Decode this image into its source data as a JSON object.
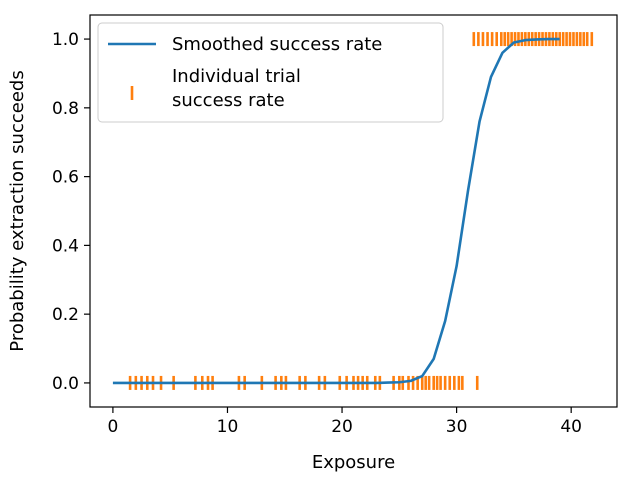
{
  "chart_data": {
    "type": "line",
    "xlabel": "Exposure",
    "ylabel": "Probability extraction succeeds",
    "xlim": [
      -2,
      44
    ],
    "ylim": [
      -0.07,
      1.07
    ],
    "x_ticks": [
      0,
      10,
      20,
      30,
      40
    ],
    "y_ticks": [
      0.0,
      0.2,
      0.4,
      0.6,
      0.8,
      1.0
    ],
    "x_tick_labels": [
      "0",
      "10",
      "20",
      "30",
      "40"
    ],
    "y_tick_labels": [
      "0.0",
      "0.2",
      "0.4",
      "0.6",
      "0.8",
      "1.0"
    ],
    "grid": false,
    "legend_position": "top-left",
    "series": [
      {
        "name": "Smoothed success rate",
        "kind": "line",
        "color": "#1f77b4",
        "x": [
          0,
          1,
          2,
          3,
          4,
          5,
          6,
          7,
          8,
          9,
          10,
          11,
          12,
          13,
          14,
          15,
          16,
          17,
          18,
          19,
          20,
          21,
          22,
          23,
          24,
          25,
          26,
          27,
          28,
          29,
          30,
          31,
          32,
          33,
          34,
          35,
          36,
          37,
          38,
          39
        ],
        "y": [
          0,
          0,
          0,
          0,
          0,
          0,
          0,
          0,
          0,
          0,
          0,
          0,
          0,
          0,
          0,
          0,
          0,
          0,
          0,
          0,
          0,
          0,
          0,
          0,
          0.001,
          0.002,
          0.006,
          0.02,
          0.07,
          0.18,
          0.34,
          0.56,
          0.76,
          0.89,
          0.96,
          0.99,
          0.997,
          0.999,
          1.0,
          1.0
        ]
      },
      {
        "name": "Individual trial\nsuccess rate",
        "kind": "event",
        "color": "#ff7f0e",
        "x": [
          1.5,
          2.0,
          2.5,
          3.0,
          3.5,
          4.2,
          5.3,
          7.2,
          7.8,
          8.3,
          8.7,
          11.0,
          11.5,
          13.0,
          14.2,
          14.7,
          15.1,
          16.3,
          16.8,
          18.0,
          18.5,
          19.8,
          20.4,
          21.0,
          21.4,
          21.8,
          22.2,
          22.9,
          23.3,
          24.5,
          25.0,
          25.3,
          25.8,
          26.2,
          26.6,
          27.0,
          27.3,
          27.6,
          28.0,
          28.3,
          28.6,
          29.0,
          29.4,
          29.8,
          30.2,
          30.5,
          31.8,
          31.5,
          31.9,
          32.3,
          32.7,
          33.1,
          33.5,
          33.9,
          34.2,
          34.5,
          34.8,
          35.1,
          35.4,
          35.7,
          36.0,
          36.3,
          36.6,
          36.9,
          37.2,
          37.5,
          37.8,
          38.1,
          38.4,
          38.7,
          39.0,
          39.3,
          39.6,
          39.9,
          40.2,
          40.5,
          40.8,
          41.1,
          41.4,
          41.8
        ],
        "y": [
          0,
          0,
          0,
          0,
          0,
          0,
          0,
          0,
          0,
          0,
          0,
          0,
          0,
          0,
          0,
          0,
          0,
          0,
          0,
          0,
          0,
          0,
          0,
          0,
          0,
          0,
          0,
          0,
          0,
          0,
          0,
          0,
          0,
          0,
          0,
          0,
          0,
          0,
          0,
          0,
          0,
          0,
          0,
          0,
          0,
          0,
          0,
          1,
          1,
          1,
          1,
          1,
          1,
          1,
          1,
          1,
          1,
          1,
          1,
          1,
          1,
          1,
          1,
          1,
          1,
          1,
          1,
          1,
          1,
          1,
          1,
          1,
          1,
          1,
          1,
          1,
          1,
          1,
          1,
          1
        ]
      }
    ]
  }
}
